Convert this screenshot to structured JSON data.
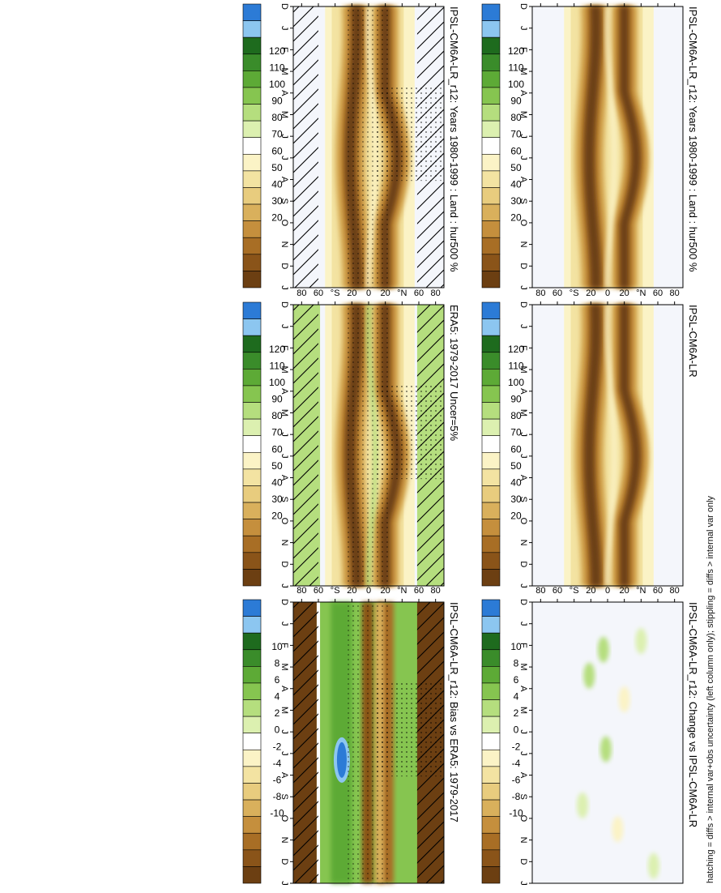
{
  "figure": {
    "footnote": "hatching = diffs > internal var+obs uncertainty (left column only); stippling = diffs > internal var only"
  },
  "colorbars": {
    "absolute": {
      "labels": [
        "120",
        "110",
        "100",
        "90",
        "80",
        "70",
        "60",
        "50",
        "40",
        "30",
        "20"
      ],
      "colors": [
        "#2c7bd6",
        "#8cc6f0",
        "#1e6b1e",
        "#3a8c2a",
        "#5daa36",
        "#86c550",
        "#b5de7e",
        "#dcf0b0",
        "#ffffff",
        "#fbf3c6",
        "#f3e3a2",
        "#e8cc7e",
        "#d9b05c",
        "#c58f3d",
        "#a86e25",
        "#8a5419",
        "#6c3f12"
      ]
    },
    "difference": {
      "labels": [
        "10",
        "8",
        "6",
        "4",
        "2",
        "0",
        "-2",
        "-4",
        "-6",
        "-8",
        "-10"
      ],
      "colors": [
        "#2c7bd6",
        "#8cc6f0",
        "#1e6b1e",
        "#3a8c2a",
        "#5daa36",
        "#86c550",
        "#b5de7e",
        "#dcf0b0",
        "#ffffff",
        "#fbf3c6",
        "#f3e3a2",
        "#e8cc7e",
        "#d9b05c",
        "#c58f3d",
        "#a86e25",
        "#8a5419",
        "#6c3f12"
      ]
    }
  },
  "chart_data": [
    {
      "type": "heatmap",
      "title": "IPSL-CM6A-LR_r12: Years 1980-1999 : Land : hur500 %",
      "kind": "absolute",
      "colorbar": "absolute",
      "hatch": true,
      "stipple": true,
      "x_ticks": [
        "D",
        "J",
        "F",
        "M",
        "A",
        "M",
        "J",
        "J",
        "A",
        "S",
        "O",
        "N",
        "D",
        "J"
      ],
      "y_ticks": [
        "80",
        "60",
        "°N",
        "20",
        "0",
        "20",
        "°S",
        "60",
        "80"
      ],
      "ylim": [
        90,
        -90
      ]
    },
    {
      "type": "heatmap",
      "title": "IPSL-CM6A-LR_r12: Years 1980-1999 : Land : hur500 %",
      "kind": "absolute",
      "colorbar": "absolute",
      "hatch": false,
      "stipple": false,
      "x_ticks": [
        "D",
        "J",
        "F",
        "M",
        "A",
        "M",
        "J",
        "J",
        "A",
        "S",
        "O",
        "N",
        "D",
        "J"
      ],
      "y_ticks": [
        "80",
        "60",
        "°N",
        "20",
        "0",
        "20",
        "°S",
        "60",
        "80"
      ],
      "ylim": [
        90,
        -90
      ]
    },
    {
      "type": "heatmap",
      "title": "ERA5: 1979-2017 Uncer=5%",
      "kind": "obs",
      "colorbar": "absolute",
      "hatch": true,
      "stipple": true,
      "x_ticks": [
        "D",
        "J",
        "F",
        "M",
        "A",
        "M",
        "J",
        "J",
        "A",
        "S",
        "O",
        "N",
        "D",
        "J"
      ],
      "y_ticks": [
        "80",
        "60",
        "°N",
        "20",
        "0",
        "20",
        "°S",
        "60",
        "80"
      ],
      "ylim": [
        90,
        -90
      ]
    },
    {
      "type": "heatmap",
      "title": "IPSL-CM6A-LR",
      "kind": "absolute",
      "colorbar": "absolute",
      "hatch": false,
      "stipple": false,
      "x_ticks": [
        "D",
        "J",
        "F",
        "M",
        "A",
        "M",
        "J",
        "J",
        "A",
        "S",
        "O",
        "N",
        "D",
        "J"
      ],
      "y_ticks": [
        "80",
        "60",
        "°N",
        "20",
        "0",
        "20",
        "°S",
        "60",
        "80"
      ],
      "ylim": [
        90,
        -90
      ]
    },
    {
      "type": "heatmap",
      "title": "IPSL-CM6A-LR_r12: Bias vs ERA5: 1979-2017",
      "kind": "bias",
      "colorbar": "difference",
      "hatch": true,
      "stipple": true,
      "x_ticks": [
        "D",
        "J",
        "F",
        "M",
        "A",
        "M",
        "J",
        "J",
        "A",
        "S",
        "O",
        "N",
        "D",
        "J"
      ],
      "y_ticks": [
        "80",
        "60",
        "°N",
        "20",
        "0",
        "20",
        "°S",
        "60",
        "80"
      ],
      "ylim": [
        90,
        -90
      ]
    },
    {
      "type": "heatmap",
      "title": "IPSL-CM6A-LR_r12: Change vs IPSL-CM6A-LR",
      "kind": "change",
      "colorbar": "difference",
      "hatch": false,
      "stipple": false,
      "x_ticks": [
        "D",
        "J",
        "F",
        "M",
        "A",
        "M",
        "J",
        "J",
        "A",
        "S",
        "O",
        "N",
        "D",
        "J"
      ],
      "y_ticks": [
        "80",
        "60",
        "°N",
        "20",
        "0",
        "20",
        "°S",
        "60",
        "80"
      ],
      "ylim": [
        90,
        -90
      ]
    }
  ]
}
